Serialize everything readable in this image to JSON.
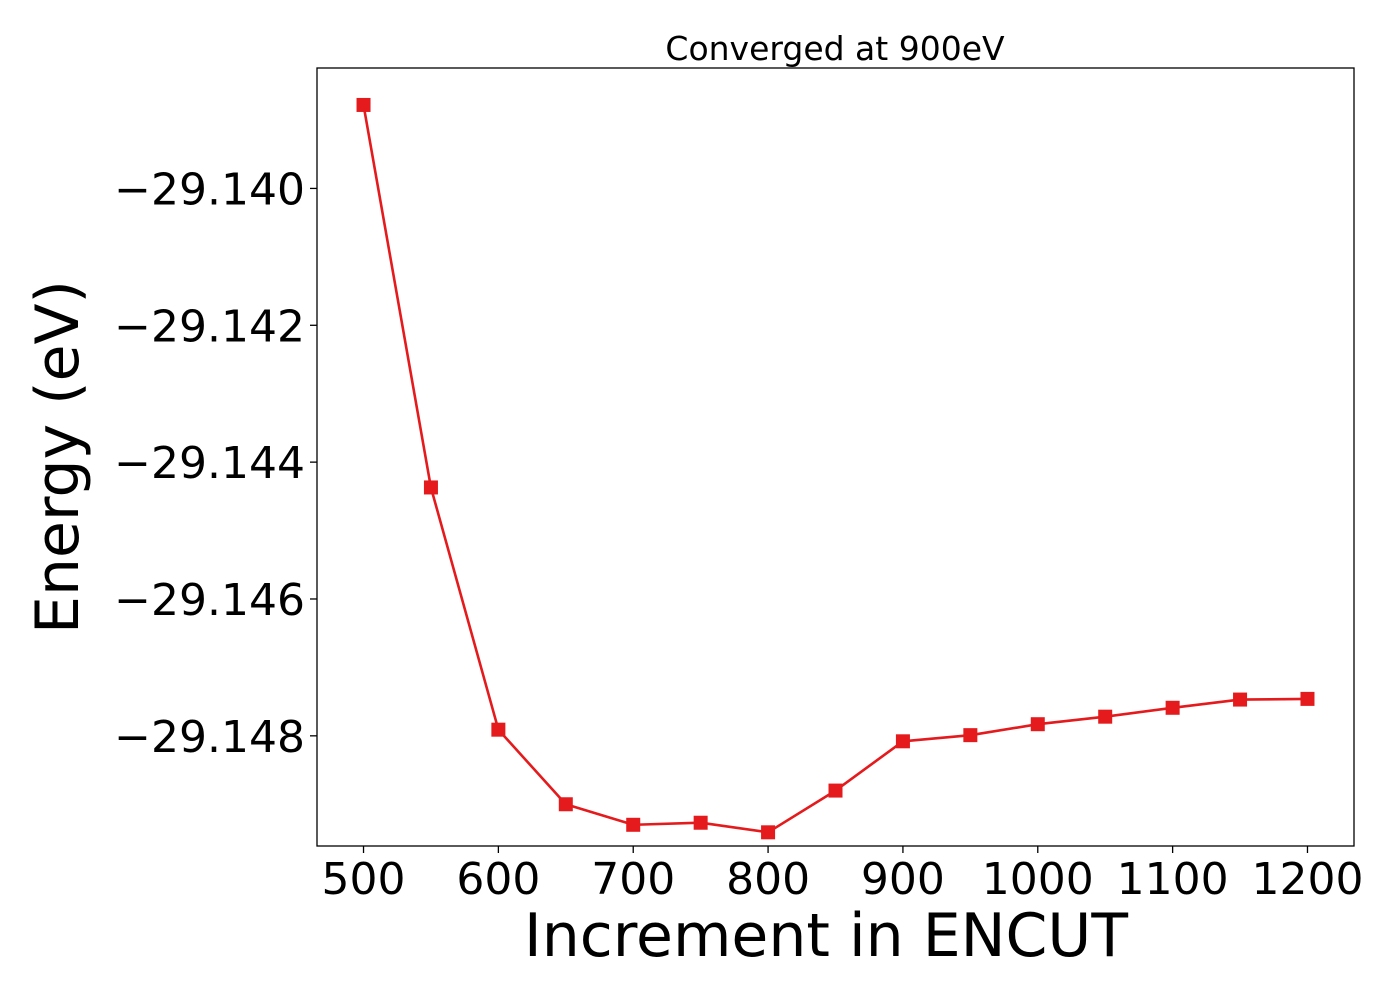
{
  "chart_data": {
    "type": "line",
    "title": "Converged at 900eV",
    "xlabel": "Increment in ENCUT",
    "ylabel": "Energy (eV)",
    "x": [
      500,
      550,
      600,
      650,
      700,
      750,
      800,
      850,
      900,
      950,
      1000,
      1050,
      1100,
      1150,
      1200
    ],
    "series": [
      {
        "values": [
          -29.13878,
          -29.14437,
          -29.14791,
          -29.149,
          -29.1493,
          -29.14927,
          -29.14941,
          -29.1488,
          -29.14808,
          -29.14799,
          -29.14783,
          -29.14772,
          -29.14759,
          -29.14747,
          -29.14746
        ],
        "color": "#e41a1c",
        "marker": "square"
      }
    ],
    "xticks": [
      500,
      600,
      700,
      800,
      900,
      1000,
      1100,
      1200
    ],
    "xtick_labels": [
      "500",
      "600",
      "700",
      "800",
      "900",
      "1000",
      "1100",
      "1200"
    ],
    "yticks": [
      -29.14,
      -29.142,
      -29.144,
      -29.146,
      -29.148
    ],
    "ytick_labels": [
      "−29.140",
      "−29.142",
      "−29.144",
      "−29.146",
      "−29.148"
    ],
    "xlim": [
      465.5,
      1234.5
    ],
    "ylim": [
      -29.14961,
      -29.13824
    ],
    "grid": false,
    "legend": "none"
  }
}
